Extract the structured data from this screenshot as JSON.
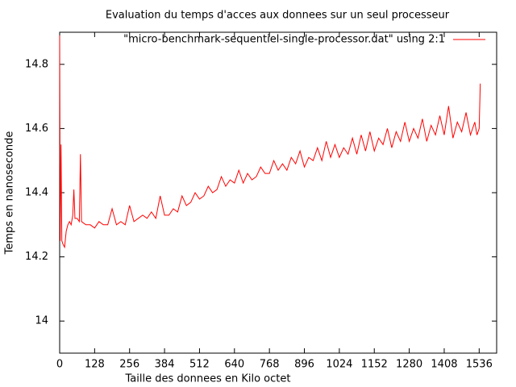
{
  "chart_data": {
    "type": "line",
    "title": "Evaluation du temps d'acces aux donnees sur un seul processeur",
    "x_label": "Taille des donnees en Kilo octet",
    "y_label": "Temps en nanoseconde",
    "legend": "top right",
    "xlim": [
      0,
      1600
    ],
    "ylim": [
      13.9,
      14.9
    ],
    "xticks": [
      0,
      128,
      256,
      384,
      512,
      640,
      768,
      896,
      1024,
      1152,
      1280,
      1408,
      1536
    ],
    "yticks": [
      14,
      14.2,
      14.4,
      14.6,
      14.8
    ],
    "x": [
      0,
      2,
      5,
      8,
      12,
      18,
      24,
      30,
      36,
      42,
      48,
      52,
      56,
      64,
      72,
      76,
      80,
      96,
      112,
      128,
      144,
      160,
      176,
      192,
      208,
      224,
      240,
      256,
      272,
      288,
      304,
      320,
      336,
      352,
      368,
      384,
      400,
      416,
      432,
      448,
      464,
      480,
      496,
      512,
      528,
      544,
      560,
      576,
      592,
      608,
      624,
      640,
      656,
      672,
      688,
      704,
      720,
      736,
      752,
      768,
      784,
      800,
      816,
      832,
      848,
      864,
      880,
      896,
      912,
      928,
      944,
      960,
      976,
      992,
      1008,
      1024,
      1040,
      1056,
      1072,
      1088,
      1104,
      1120,
      1136,
      1152,
      1168,
      1184,
      1200,
      1216,
      1232,
      1248,
      1264,
      1280,
      1296,
      1312,
      1328,
      1344,
      1360,
      1376,
      1392,
      1408,
      1424,
      1440,
      1456,
      1472,
      1488,
      1504,
      1520,
      1528,
      1536,
      1540
    ],
    "series": [
      {
        "name": "\"micro-benchmark-sequentiel-single-processor.dat\" using 2:1",
        "color": "#ff0000",
        "values": [
          14.89,
          14.25,
          14.55,
          14.25,
          14.24,
          14.23,
          14.28,
          14.3,
          14.31,
          14.3,
          14.33,
          14.41,
          14.32,
          14.32,
          14.31,
          14.52,
          14.31,
          14.3,
          14.3,
          14.29,
          14.31,
          14.3,
          14.3,
          14.35,
          14.3,
          14.31,
          14.3,
          14.36,
          14.31,
          14.32,
          14.33,
          14.32,
          14.34,
          14.32,
          14.39,
          14.33,
          14.33,
          14.35,
          14.34,
          14.39,
          14.36,
          14.37,
          14.4,
          14.38,
          14.39,
          14.42,
          14.4,
          14.41,
          14.45,
          14.42,
          14.44,
          14.43,
          14.47,
          14.43,
          14.46,
          14.44,
          14.45,
          14.48,
          14.46,
          14.46,
          14.5,
          14.47,
          14.49,
          14.47,
          14.51,
          14.49,
          14.53,
          14.48,
          14.51,
          14.5,
          14.54,
          14.5,
          14.56,
          14.51,
          14.55,
          14.51,
          14.54,
          14.52,
          14.57,
          14.52,
          14.58,
          14.53,
          14.59,
          14.53,
          14.57,
          14.55,
          14.6,
          14.54,
          14.59,
          14.56,
          14.62,
          14.56,
          14.6,
          14.57,
          14.63,
          14.56,
          14.61,
          14.58,
          14.64,
          14.58,
          14.67,
          14.57,
          14.62,
          14.59,
          14.65,
          14.58,
          14.62,
          14.58,
          14.6,
          14.74
        ]
      }
    ]
  }
}
